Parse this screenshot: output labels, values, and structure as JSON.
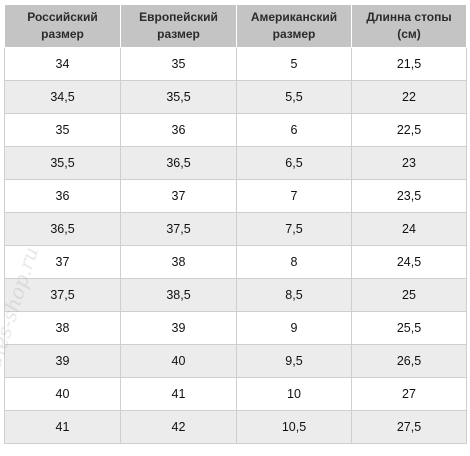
{
  "table": {
    "headers": [
      [
        "Российский",
        "размер"
      ],
      [
        "Европейский",
        "размер"
      ],
      [
        "Американский",
        "размер"
      ],
      [
        "Длинна стопы",
        "(см)"
      ]
    ],
    "rows": [
      [
        "34",
        "35",
        "5",
        "21,5"
      ],
      [
        "34,5",
        "35,5",
        "5,5",
        "22"
      ],
      [
        "35",
        "36",
        "6",
        "22,5"
      ],
      [
        "35,5",
        "36,5",
        "6,5",
        "23"
      ],
      [
        "36",
        "37",
        "7",
        "23,5"
      ],
      [
        "36,5",
        "37,5",
        "7,5",
        "24"
      ],
      [
        "37",
        "38",
        "8",
        "24,5"
      ],
      [
        "37,5",
        "38,5",
        "8,5",
        "25"
      ],
      [
        "38",
        "39",
        "9",
        "25,5"
      ],
      [
        "39",
        "40",
        "9,5",
        "26,5"
      ],
      [
        "40",
        "41",
        "10",
        "27"
      ],
      [
        "41",
        "42",
        "10,5",
        "27,5"
      ]
    ]
  },
  "watermark": "ladies-shop.ru",
  "colors": {
    "header_bg": "#c4c4c4",
    "row_alt_bg": "#ececec",
    "row_bg": "#ffffff"
  }
}
